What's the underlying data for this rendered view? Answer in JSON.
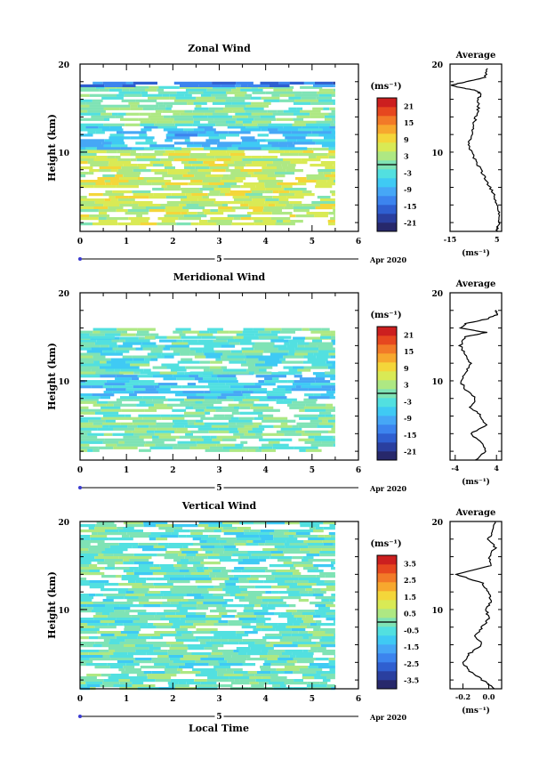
{
  "panels": [
    {
      "title": "Zonal Wind",
      "ylabel": "Height (km)",
      "y_ticks": [
        "20",
        "10"
      ],
      "x_ticks": [
        "0",
        "1",
        "2",
        "3",
        "4",
        "5",
        "6"
      ],
      "date_mark": "5",
      "date_label": "Apr 2020",
      "units": "(ms⁻¹)",
      "colorbar_labels": [
        "21",
        "15",
        "9",
        "3",
        "-3",
        "-9",
        "-15",
        "-21"
      ],
      "avg_title": "Average",
      "avg_y_ticks": [
        "20",
        "10"
      ],
      "avg_x_ticks": [
        "-15",
        "5"
      ],
      "avg_units": "(ms⁻¹)"
    },
    {
      "title": "Meridional Wind",
      "ylabel": "Height (km)",
      "y_ticks": [
        "20",
        "10"
      ],
      "x_ticks": [
        "0",
        "1",
        "2",
        "3",
        "4",
        "5",
        "6"
      ],
      "date_mark": "5",
      "date_label": "Apr 2020",
      "units": "(ms⁻¹)",
      "colorbar_labels": [
        "21",
        "15",
        "9",
        "3",
        "-3",
        "-9",
        "-15",
        "-21"
      ],
      "avg_title": "Average",
      "avg_y_ticks": [
        "20",
        "10"
      ],
      "avg_x_ticks": [
        "-4",
        "4"
      ],
      "avg_units": "(ms⁻¹)"
    },
    {
      "title": "Vertical Wind",
      "ylabel": "Height (km)",
      "y_ticks": [
        "20",
        "10"
      ],
      "x_ticks": [
        "0",
        "1",
        "2",
        "3",
        "4",
        "5",
        "6"
      ],
      "date_mark": "5",
      "date_label": "Apr 2020",
      "units": "(ms⁻¹)",
      "colorbar_labels": [
        "3.5",
        "2.5",
        "1.5",
        "0.5",
        "-0.5",
        "-1.5",
        "-2.5",
        "-3.5"
      ],
      "avg_title": "Average",
      "avg_y_ticks": [
        "20",
        "10"
      ],
      "avg_x_ticks": [
        "-0.2",
        "0.0"
      ],
      "avg_units": "(ms⁻¹)"
    }
  ],
  "xlabel": "Local Time",
  "palette": [
    "#27286b",
    "#2a3f9f",
    "#2f5fd0",
    "#3c84ee",
    "#46a7f6",
    "#3fcaf4",
    "#52e0e0",
    "#7fe3b5",
    "#aee883",
    "#d9ea55",
    "#f4d63a",
    "#f7a82e",
    "#f27a28",
    "#e6471f",
    "#cc1f1f"
  ],
  "chart_data": [
    {
      "type": "heatmap",
      "title": "Zonal Wind",
      "xlabel": "Local Time",
      "ylabel": "Height (km)",
      "xlim": [
        0,
        6
      ],
      "ylim": [
        1,
        20
      ],
      "data_xlim": [
        0,
        5.5
      ],
      "colorbar": {
        "units": "(ms⁻¹)",
        "range": [
          -24,
          24
        ],
        "ticks": [
          21,
          15,
          9,
          3,
          -3,
          -9,
          -15,
          -21
        ]
      },
      "rows": [
        {
          "z": [
            2,
            10.5
          ],
          "value": 5
        },
        {
          "z": [
            10.5,
            13
          ],
          "value": -7
        },
        {
          "z": [
            13,
            17.5
          ],
          "value": 0
        },
        {
          "z": [
            17.5,
            18
          ],
          "value": -14
        }
      ],
      "average_profile": {
        "title": "Average",
        "xlabel": "(ms⁻¹)",
        "xlim": [
          -15,
          7
        ],
        "z": [
          1,
          2,
          3,
          4,
          5,
          6,
          7,
          8,
          9,
          10,
          11,
          12,
          13,
          14,
          15,
          16,
          16.6,
          17,
          17.3,
          17.6,
          18,
          18.5,
          19.5
        ],
        "value": [
          5,
          6,
          6,
          5,
          4,
          2,
          0,
          -2,
          -4,
          -6,
          -7,
          -6,
          -5,
          -4,
          -3,
          -3,
          -2,
          -4,
          -10,
          -15,
          -8,
          0,
          1
        ]
      }
    },
    {
      "type": "heatmap",
      "title": "Meridional Wind",
      "xlabel": "Local Time",
      "ylabel": "Height (km)",
      "xlim": [
        0,
        6
      ],
      "ylim": [
        1,
        20
      ],
      "data_xlim": [
        0,
        5.5
      ],
      "colorbar": {
        "units": "(ms⁻¹)",
        "range": [
          -24,
          24
        ],
        "ticks": [
          21,
          15,
          9,
          3,
          -3,
          -9,
          -15,
          -21
        ]
      },
      "rows": [
        {
          "z": [
            2,
            8
          ],
          "value": 0
        },
        {
          "z": [
            8,
            11
          ],
          "value": -6
        },
        {
          "z": [
            11,
            15
          ],
          "value": -2
        },
        {
          "z": [
            15,
            16
          ],
          "value": 0
        }
      ],
      "average_profile": {
        "title": "Average",
        "xlabel": "(ms⁻¹)",
        "xlim": [
          -5,
          5
        ],
        "z": [
          1,
          2,
          3,
          4,
          5,
          6,
          7,
          8,
          9,
          10,
          11,
          12,
          13,
          14,
          15,
          15.5,
          16,
          16.5,
          17,
          17.5,
          18
        ],
        "value": [
          0,
          2,
          1,
          -1,
          2,
          1,
          -1,
          0,
          -2,
          -3,
          -2,
          -1,
          -2,
          -3,
          -2,
          2,
          -3,
          -2,
          2,
          4,
          4
        ]
      }
    },
    {
      "type": "heatmap",
      "title": "Vertical Wind",
      "xlabel": "Local Time",
      "ylabel": "Height (km)",
      "xlim": [
        0,
        6
      ],
      "ylim": [
        1,
        20
      ],
      "data_xlim": [
        0,
        5.5
      ],
      "colorbar": {
        "units": "(ms⁻¹)",
        "range": [
          -4,
          4
        ],
        "ticks": [
          3.5,
          2.5,
          1.5,
          0.5,
          -0.5,
          -1.5,
          -2.5,
          -3.5
        ]
      },
      "rows": [
        {
          "z": [
            1,
            20
          ],
          "value": -0.2
        }
      ],
      "average_profile": {
        "title": "Average",
        "xlabel": "(ms⁻¹)",
        "xlim": [
          -0.3,
          0.1
        ],
        "z": [
          1,
          2,
          3,
          4,
          5,
          6,
          7,
          8,
          9,
          10,
          11,
          12,
          13,
          14,
          15,
          16,
          17,
          18,
          19,
          20
        ],
        "value": [
          0.05,
          -0.05,
          -0.15,
          -0.2,
          -0.15,
          -0.05,
          -0.1,
          -0.05,
          0.0,
          -0.02,
          0.02,
          0.0,
          -0.05,
          -0.25,
          0.02,
          0.0,
          0.05,
          0.0,
          0.03,
          0.05
        ]
      }
    }
  ]
}
